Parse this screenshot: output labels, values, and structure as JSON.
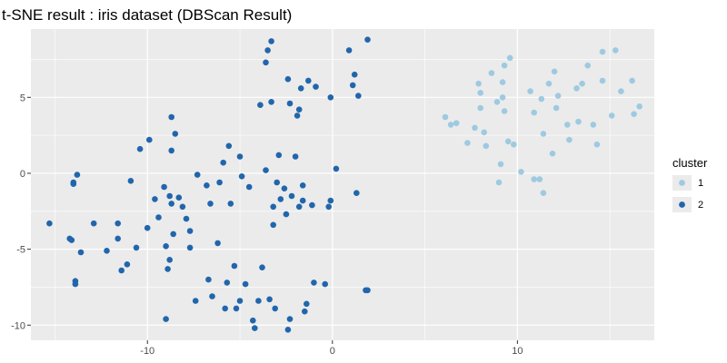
{
  "chart_data": {
    "type": "scatter",
    "title": "t-SNE result : iris dataset (DBScan Result)",
    "xlabel": "",
    "ylabel": "",
    "xlim": [
      -16.3,
      17.4
    ],
    "ylim": [
      -11.0,
      9.5
    ],
    "xticks": [
      -10,
      0,
      10
    ],
    "yticks": [
      -10,
      -5,
      0,
      5
    ],
    "xtick_labels": [
      "-10",
      "0",
      "10"
    ],
    "ytick_labels": [
      "-10",
      "-5",
      "0",
      "5"
    ],
    "grid": true,
    "panel_background": "#ebebeb",
    "grid_color": "#ffffff",
    "legend": {
      "title": "cluster",
      "placement": "right",
      "entries": [
        {
          "label": "1",
          "color": "#9ecae1"
        },
        {
          "label": "2",
          "color": "#2166ac"
        }
      ]
    },
    "series": [
      {
        "name": "1",
        "color": "#9ecae1",
        "points": [
          [
            6.1,
            3.7
          ],
          [
            6.4,
            3.2
          ],
          [
            6.7,
            3.3
          ],
          [
            7.3,
            2.0
          ],
          [
            7.7,
            3.0
          ],
          [
            8.0,
            4.3
          ],
          [
            7.9,
            5.9
          ],
          [
            8.0,
            5.3
          ],
          [
            8.2,
            2.7
          ],
          [
            8.3,
            1.8
          ],
          [
            8.6,
            6.6
          ],
          [
            8.9,
            4.7
          ],
          [
            9.0,
            -0.6
          ],
          [
            9.1,
            0.6
          ],
          [
            9.2,
            5.0
          ],
          [
            9.3,
            7.1
          ],
          [
            9.3,
            4.1
          ],
          [
            9.6,
            7.6
          ],
          [
            9.5,
            2.1
          ],
          [
            9.2,
            6.0
          ],
          [
            10.2,
            0.1
          ],
          [
            10.7,
            5.4
          ],
          [
            10.9,
            -0.4
          ],
          [
            10.9,
            4.0
          ],
          [
            11.2,
            -0.4
          ],
          [
            11.3,
            4.9
          ],
          [
            11.4,
            -1.3
          ],
          [
            11.4,
            2.6
          ],
          [
            11.7,
            5.9
          ],
          [
            11.9,
            1.3
          ],
          [
            12.0,
            6.7
          ],
          [
            12.1,
            4.3
          ],
          [
            12.2,
            5.1
          ],
          [
            12.7,
            3.2
          ],
          [
            12.8,
            2.2
          ],
          [
            13.2,
            5.6
          ],
          [
            13.3,
            3.4
          ],
          [
            13.5,
            5.9
          ],
          [
            13.8,
            7.1
          ],
          [
            14.1,
            3.2
          ],
          [
            14.3,
            1.9
          ],
          [
            14.6,
            6.1
          ],
          [
            14.6,
            8.0
          ],
          [
            15.1,
            3.8
          ],
          [
            15.3,
            8.1
          ],
          [
            15.6,
            5.4
          ],
          [
            16.2,
            6.1
          ],
          [
            16.3,
            3.9
          ],
          [
            16.6,
            4.4
          ],
          [
            9.8,
            1.9
          ]
        ]
      },
      {
        "name": "2",
        "color": "#2166ac",
        "points": [
          [
            -15.3,
            -3.3
          ],
          [
            -14.2,
            -4.3
          ],
          [
            -14.1,
            -4.4
          ],
          [
            -14.0,
            -0.6
          ],
          [
            -14.0,
            -0.7
          ],
          [
            -13.9,
            -7.1
          ],
          [
            -13.8,
            -0.1
          ],
          [
            -13.6,
            -5.2
          ],
          [
            -13.9,
            -7.3
          ],
          [
            -12.9,
            -3.3
          ],
          [
            -12.2,
            -5.1
          ],
          [
            -11.6,
            -3.3
          ],
          [
            -11.6,
            -4.3
          ],
          [
            -11.4,
            -6.4
          ],
          [
            -11.1,
            -6.0
          ],
          [
            -10.9,
            -0.5
          ],
          [
            -10.6,
            -4.9
          ],
          [
            -10.4,
            1.6
          ],
          [
            -10.0,
            -3.6
          ],
          [
            -9.9,
            2.2
          ],
          [
            -9.6,
            -1.7
          ],
          [
            -9.4,
            -2.9
          ],
          [
            -9.1,
            -0.9
          ],
          [
            -9.0,
            -4.8
          ],
          [
            -9.0,
            -9.6
          ],
          [
            -8.9,
            -6.3
          ],
          [
            -8.8,
            -1.5
          ],
          [
            -8.8,
            -5.7
          ],
          [
            -8.7,
            -2.0
          ],
          [
            -8.6,
            -4.0
          ],
          [
            -8.7,
            1.5
          ],
          [
            -8.7,
            3.7
          ],
          [
            -8.5,
            2.6
          ],
          [
            -8.3,
            -1.6
          ],
          [
            -8.1,
            -2.2
          ],
          [
            -7.9,
            -3.0
          ],
          [
            -7.7,
            -4.9
          ],
          [
            -7.7,
            -3.8
          ],
          [
            -7.4,
            -8.4
          ],
          [
            -7.3,
            -0.1
          ],
          [
            -6.8,
            -0.8
          ],
          [
            -6.7,
            -7.0
          ],
          [
            -6.6,
            -2.0
          ],
          [
            -6.5,
            -8.1
          ],
          [
            -6.2,
            -4.6
          ],
          [
            -6.1,
            -0.6
          ],
          [
            -5.9,
            0.7
          ],
          [
            -5.8,
            -8.9
          ],
          [
            -5.7,
            -7.2
          ],
          [
            -5.6,
            1.8
          ],
          [
            -5.5,
            -2.0
          ],
          [
            -5.3,
            -6.1
          ],
          [
            -5.2,
            -8.9
          ],
          [
            -5.0,
            -8.4
          ],
          [
            -5.0,
            1.1
          ],
          [
            -4.7,
            -7.3
          ],
          [
            -4.5,
            -0.9
          ],
          [
            -4.3,
            -9.7
          ],
          [
            -4.2,
            -10.2
          ],
          [
            -4.0,
            -8.4
          ],
          [
            -3.9,
            4.5
          ],
          [
            -3.8,
            -6.2
          ],
          [
            -3.6,
            0.2
          ],
          [
            -3.6,
            7.3
          ],
          [
            -3.5,
            8.1
          ],
          [
            -3.4,
            -8.3
          ],
          [
            -3.3,
            8.7
          ],
          [
            -3.3,
            4.7
          ],
          [
            -3.2,
            -2.2
          ],
          [
            -3.2,
            -3.4
          ],
          [
            -3.1,
            -8.9
          ],
          [
            -3.0,
            -0.6
          ],
          [
            -2.9,
            1.2
          ],
          [
            -2.8,
            -1.7
          ],
          [
            -2.6,
            -1.0
          ],
          [
            -2.5,
            -2.7
          ],
          [
            -2.4,
            6.2
          ],
          [
            -2.4,
            -10.3
          ],
          [
            -2.3,
            4.6
          ],
          [
            -2.3,
            -9.6
          ],
          [
            -2.2,
            -1.5
          ],
          [
            -2.0,
            1.1
          ],
          [
            -1.9,
            3.8
          ],
          [
            -1.8,
            -2.2
          ],
          [
            -1.8,
            4.2
          ],
          [
            -1.7,
            5.6
          ],
          [
            -1.6,
            -0.8
          ],
          [
            -1.6,
            -1.8
          ],
          [
            -1.5,
            -9.1
          ],
          [
            -1.4,
            -8.6
          ],
          [
            -1.3,
            6.1
          ],
          [
            -1.1,
            -2.1
          ],
          [
            -1.0,
            -7.2
          ],
          [
            -0.9,
            5.7
          ],
          [
            -0.4,
            -7.3
          ],
          [
            -0.2,
            -2.2
          ],
          [
            -0.1,
            5.0
          ],
          [
            -0.1,
            -1.8
          ],
          [
            0.2,
            0.3
          ],
          [
            0.9,
            8.1
          ],
          [
            1.1,
            5.8
          ],
          [
            1.2,
            6.5
          ],
          [
            1.3,
            -1.3
          ],
          [
            1.4,
            5.1
          ],
          [
            1.9,
            8.8
          ],
          [
            1.9,
            -7.7
          ],
          [
            1.8,
            -7.7
          ],
          [
            -4.9,
            -0.2
          ]
        ]
      }
    ]
  }
}
